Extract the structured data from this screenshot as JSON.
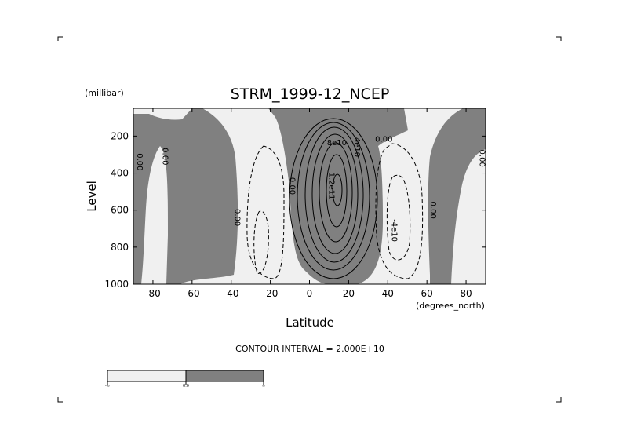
{
  "chart_data": {
    "type": "contour",
    "title": "STRM_1999-12_NCEP",
    "xlabel": "Latitude",
    "x_unit": "(degrees_north)",
    "ylabel": "Level",
    "y_unit": "(millibar)",
    "xlim": [
      -90,
      90
    ],
    "ylim": [
      1000,
      50
    ],
    "y_inverted": true,
    "x_ticks": [
      "-80",
      "-60",
      "-40",
      "-20",
      "0",
      "20",
      "40",
      "60",
      "80"
    ],
    "y_ticks": [
      "200",
      "400",
      "600",
      "800",
      "1000"
    ],
    "contour_interval_text": "CONTOUR INTERVAL = 2.000E+10",
    "contour_interval": 20000000000.0,
    "fill_colors": {
      "negative": "#f0f0f0",
      "positive": "#808080"
    },
    "contour_labels": [
      {
        "text": "0.00",
        "lat": -75,
        "level": 310,
        "rotate": 90
      },
      {
        "text": "0.00",
        "lat": -88,
        "level": 340,
        "rotate": 90
      },
      {
        "text": "0.00",
        "lat": -38,
        "level": 640,
        "rotate": 90
      },
      {
        "text": "0.00",
        "lat": -10,
        "level": 470,
        "rotate": 90
      },
      {
        "text": "8e10",
        "lat": 14,
        "level": 250,
        "rotate": 0
      },
      {
        "text": "4e10",
        "lat": 23,
        "level": 260,
        "rotate": 90
      },
      {
        "text": "1.2e11",
        "lat": 10,
        "level": 470,
        "rotate": 90
      },
      {
        "text": "0.00",
        "lat": 38,
        "level": 230,
        "rotate": 0
      },
      {
        "text": "-4e10",
        "lat": 42,
        "level": 710,
        "rotate": 90
      },
      {
        "text": "0.00",
        "lat": 62,
        "level": 600,
        "rotate": 90
      },
      {
        "text": "0.00",
        "lat": 87,
        "level": 320,
        "rotate": 90
      }
    ],
    "colorbar": {
      "labels": [
        "-∞",
        "0.0",
        "∞"
      ]
    }
  }
}
